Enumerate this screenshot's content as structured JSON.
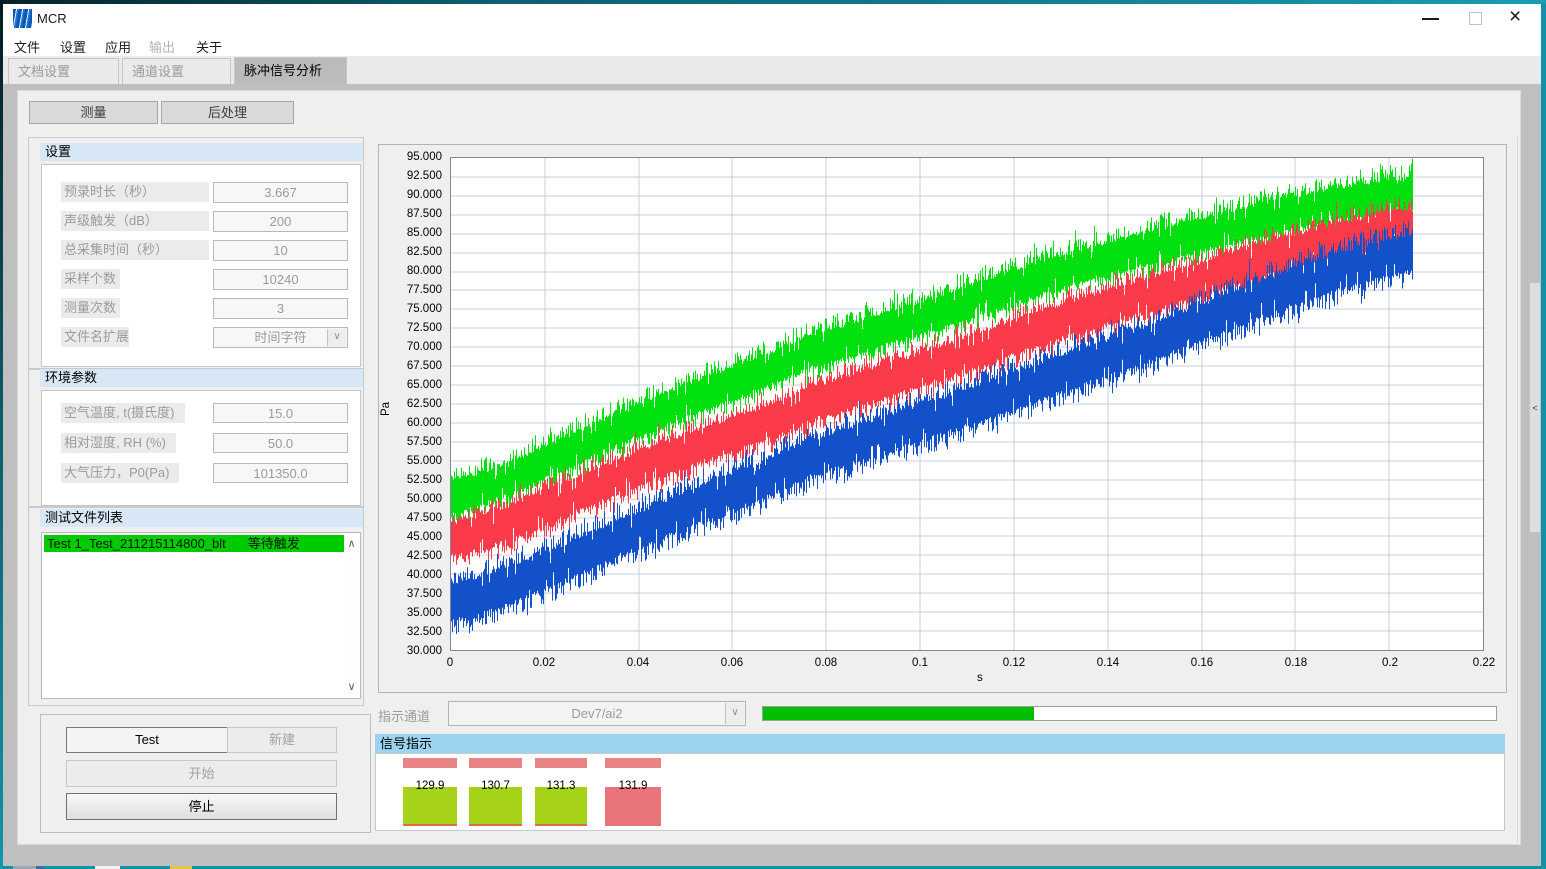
{
  "window": {
    "title": "MCR"
  },
  "menu": {
    "items": [
      {
        "label": "文件",
        "enabled": true
      },
      {
        "label": "设置",
        "enabled": true
      },
      {
        "label": "应用",
        "enabled": true
      },
      {
        "label": "输出",
        "enabled": false
      },
      {
        "label": "关于",
        "enabled": true
      }
    ]
  },
  "tabs": [
    {
      "label": "文档设置",
      "active": false
    },
    {
      "label": "通道设置",
      "active": false
    },
    {
      "label": "脉冲信号分析",
      "active": true
    }
  ],
  "toolbar": {
    "measure": "测量",
    "post_process": "后处理"
  },
  "settings_panel": {
    "title": "设置",
    "fields": [
      {
        "label": "预录时长（秒）",
        "value": "3.667"
      },
      {
        "label": "声级触发（dB）",
        "value": "200"
      },
      {
        "label": "总采集时间（秒）",
        "value": "10"
      },
      {
        "label": "采样个数",
        "value": "10240"
      },
      {
        "label": "测量次数",
        "value": "3"
      },
      {
        "label": "文件名扩展",
        "value": "时间字符",
        "dropdown": true
      }
    ]
  },
  "env_panel": {
    "title": "环境参数",
    "fields": [
      {
        "label": "空气温度, t(摄氏度)",
        "value": "15.0"
      },
      {
        "label": "相对湿度, RH (%)",
        "value": "50.0"
      },
      {
        "label": "大气压力，P0(Pa)",
        "value": "101350.0"
      }
    ]
  },
  "file_panel": {
    "title": "测试文件列表",
    "items": [
      {
        "name": "Test 1_Test_211215114800_blt",
        "status": "等待触发"
      }
    ]
  },
  "actions": {
    "test": "Test",
    "new": "新建",
    "start": "开始",
    "stop": "停止"
  },
  "channel_row": {
    "label": "指示通道",
    "value": "Dev7/ai2",
    "progress_percent": 37
  },
  "signal_panel": {
    "title": "信号指示",
    "items": [
      {
        "value": "129.9",
        "state": "green"
      },
      {
        "value": "130.7",
        "state": "green"
      },
      {
        "value": "131.3",
        "state": "green"
      },
      {
        "value": "131.9",
        "state": "red"
      }
    ]
  },
  "chart_data": {
    "type": "line",
    "title": "",
    "xlabel": "s",
    "ylabel": "Pa",
    "xlim": [
      0,
      0.22
    ],
    "ylim": [
      30,
      95
    ],
    "x_tick_labels": [
      "0",
      "0.02",
      "0.04",
      "0.06",
      "0.08",
      "0.1",
      "0.12",
      "0.14",
      "0.16",
      "0.18",
      "0.2",
      "0.22"
    ],
    "y_tick_start": 95,
    "y_tick_end": 30,
    "y_tick_step": 2.5,
    "grid": true,
    "series": [
      {
        "name": "channel-green",
        "color": "#00e00e",
        "points": [
          [
            0,
            50.3
          ],
          [
            0.0426,
            61.0
          ],
          [
            0.0766,
            69.5
          ],
          [
            0.1404,
            81.8
          ],
          [
            0.205,
            90.3
          ]
        ],
        "core": 2.1,
        "fringe": 1.9,
        "seed": 11
      },
      {
        "name": "channel-red",
        "color": "#fb3a4a",
        "points": [
          [
            0,
            44.6
          ],
          [
            0.0426,
            54.5
          ],
          [
            0.0766,
            62.6
          ],
          [
            0.1404,
            75.4
          ],
          [
            0.205,
            85.9
          ]
        ],
        "core": 2.2,
        "fringe": 1.9,
        "seed": 22
      },
      {
        "name": "channel-blue",
        "color": "#1351cb",
        "points": [
          [
            0,
            36.3
          ],
          [
            0.0426,
            46.5
          ],
          [
            0.0766,
            55.5
          ],
          [
            0.1404,
            68.7
          ],
          [
            0.205,
            82.5
          ]
        ],
        "core": 2.4,
        "fringe": 2.1,
        "seed": 33
      }
    ]
  }
}
